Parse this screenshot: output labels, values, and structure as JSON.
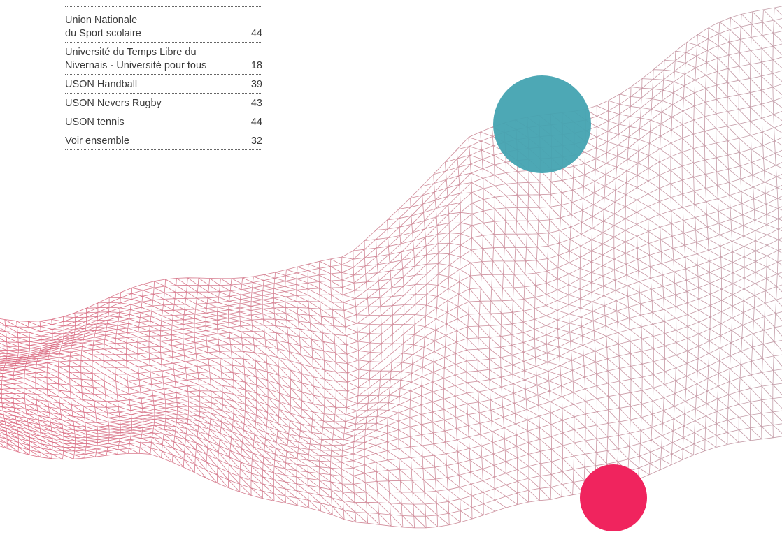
{
  "index": {
    "entries": [
      {
        "lines": [
          "Union Nationale",
          "du Sport scolaire"
        ],
        "page": "44"
      },
      {
        "lines": [
          "Université du Temps Libre du",
          "Nivernais - Université pour tous"
        ],
        "page": "18"
      },
      {
        "lines": [
          "USON Handball"
        ],
        "page": "39"
      },
      {
        "lines": [
          "USON Nevers Rugby"
        ],
        "page": "43"
      },
      {
        "lines": [
          "USON tennis"
        ],
        "page": "44"
      },
      {
        "lines": [
          "Voir ensemble"
        ],
        "page": "32"
      }
    ]
  },
  "colors": {
    "text": "#3a3a3a",
    "mesh_left": "#d8536e",
    "mesh_right": "#b88d9a",
    "teal_circle": "#43a3b1",
    "pink_circle": "#f0245e"
  }
}
